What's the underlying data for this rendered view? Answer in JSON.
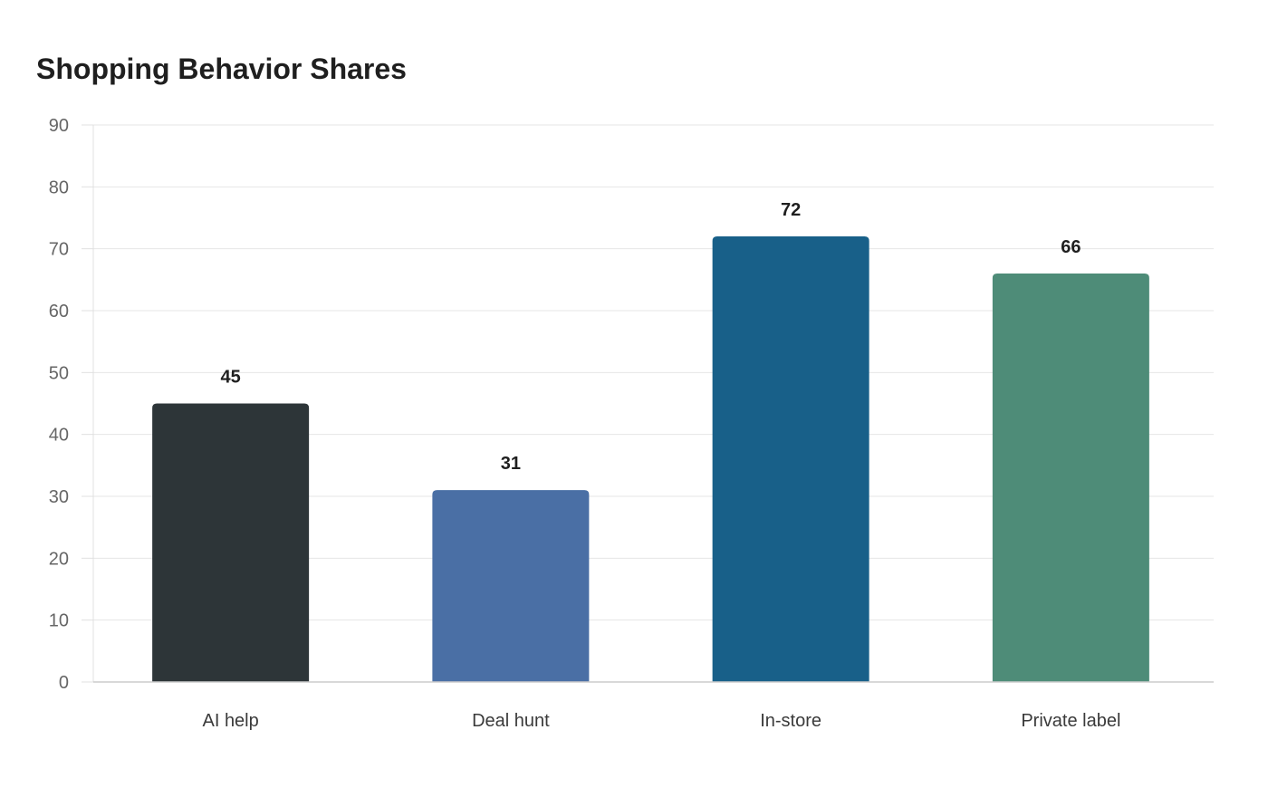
{
  "chart_data": {
    "type": "bar",
    "title": "Shopping Behavior Shares",
    "xlabel": "",
    "ylabel": "",
    "categories": [
      "AI help",
      "Deal hunt",
      "In-store",
      "Private label"
    ],
    "values": [
      45,
      31,
      72,
      66
    ],
    "colors": [
      "#2d3538",
      "#4a6fa5",
      "#186089",
      "#4e8c78"
    ],
    "ylim": [
      0,
      90
    ],
    "yticks": [
      0,
      10,
      20,
      30,
      40,
      50,
      60,
      70,
      80,
      90
    ],
    "grid": true,
    "legend": "none"
  }
}
